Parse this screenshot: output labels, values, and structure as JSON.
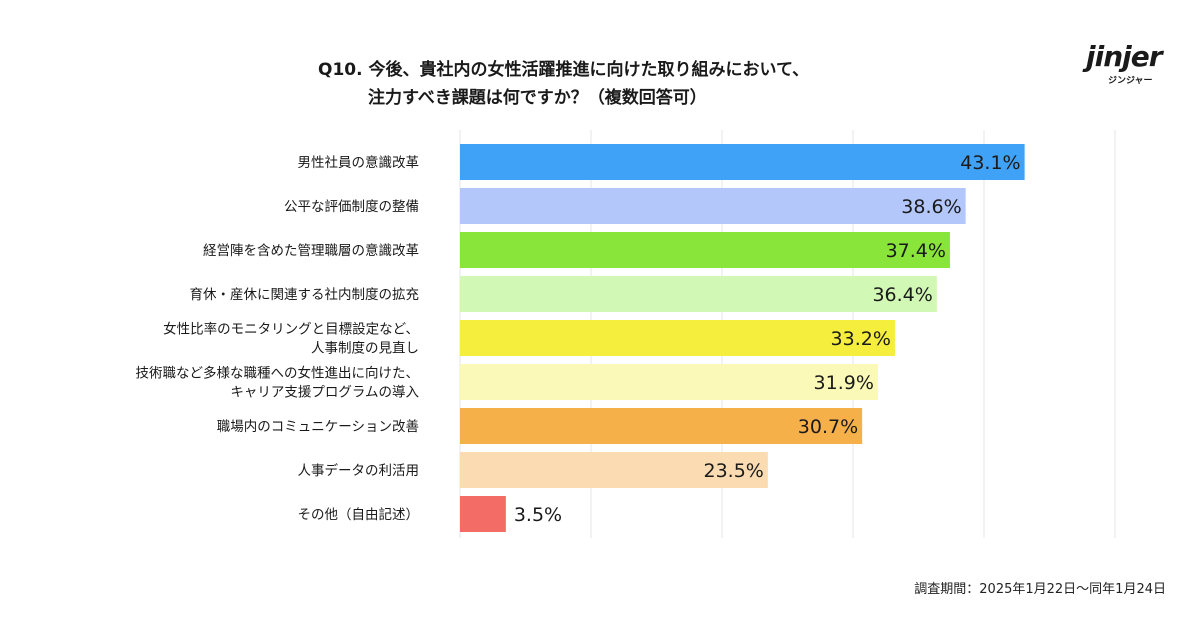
{
  "title": {
    "line1": "Q10. 今後、貴社内の女性活躍推進に向けた取り組みにおいて、",
    "line2": "注力すべき課題は何ですか？（複数回答可）"
  },
  "logo": {
    "word": "jinjer",
    "kana": "ジンジャー"
  },
  "footnote": "調査期間：2025年1月22日〜同年1月24日",
  "chart_data": {
    "type": "bar",
    "orientation": "horizontal",
    "categories": [
      [
        "男性社員の意識改革"
      ],
      [
        "公平な評価制度の整備"
      ],
      [
        "経営陣を含めた管理職層の意識改革"
      ],
      [
        "育休・産休に関連する社内制度の拡充"
      ],
      [
        "女性比率のモニタリングと目標設定など、",
        "人事制度の見直し"
      ],
      [
        "技術職など多様な職種への女性進出に向けた、",
        "キャリア支援プログラムの導入"
      ],
      [
        "職場内のコミュニケーション改善"
      ],
      [
        "人事データの利活用"
      ],
      [
        "その他（自由記述）"
      ]
    ],
    "values": [
      43.1,
      38.6,
      37.4,
      36.4,
      33.2,
      31.9,
      30.7,
      23.5,
      3.5
    ],
    "value_labels": [
      "43.1%",
      "38.6%",
      "37.4%",
      "36.4%",
      "33.2%",
      "31.9%",
      "30.7%",
      "23.5%",
      "3.5%"
    ],
    "colors": [
      "#3fa2f6",
      "#b3c7fb",
      "#8ae53b",
      "#d2f8b6",
      "#f5ee3c",
      "#faf9b8",
      "#f5b04a",
      "#fadbb2",
      "#f36c66"
    ],
    "xlim": [
      0,
      50
    ],
    "grid": true
  }
}
